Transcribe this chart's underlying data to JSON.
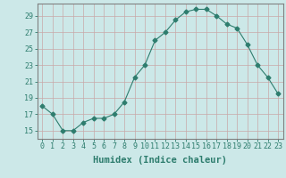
{
  "x": [
    0,
    1,
    2,
    3,
    4,
    5,
    6,
    7,
    8,
    9,
    10,
    11,
    12,
    13,
    14,
    15,
    16,
    17,
    18,
    19,
    20,
    21,
    22,
    23
  ],
  "y": [
    18,
    17,
    15,
    15,
    16,
    16.5,
    16.5,
    17,
    18.5,
    21.5,
    23,
    26,
    27,
    28.5,
    29.5,
    29.8,
    29.8,
    29,
    28,
    27.5,
    25.5,
    23,
    21.5,
    19.5
  ],
  "line_color": "#2e7d6e",
  "marker": "D",
  "marker_size": 2.5,
  "bg_color": "#cce8e8",
  "grid_color": "#c8a8a8",
  "xlabel": "Humidex (Indice chaleur)",
  "xlabel_fontsize": 7.5,
  "xlim": [
    -0.5,
    23.5
  ],
  "ylim": [
    14,
    30.5
  ],
  "yticks": [
    15,
    17,
    19,
    21,
    23,
    25,
    27,
    29
  ],
  "xtick_labels": [
    "0",
    "1",
    "2",
    "3",
    "4",
    "5",
    "6",
    "7",
    "8",
    "9",
    "10",
    "11",
    "12",
    "13",
    "14",
    "15",
    "16",
    "17",
    "18",
    "19",
    "20",
    "21",
    "22",
    "23"
  ],
  "tick_fontsize": 6,
  "tick_color": "#2e7d6e",
  "xlabel_color": "#2e7d6e",
  "spine_color": "#808080"
}
